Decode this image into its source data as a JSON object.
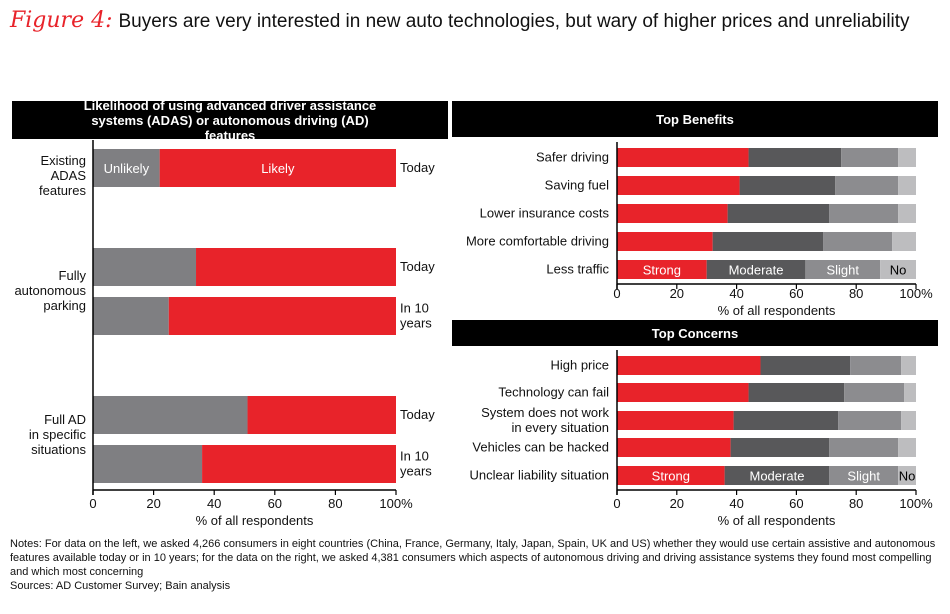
{
  "figure": {
    "label": "Figure 4:",
    "title": "Buyers are very interested in new auto technologies, but wary of higher prices and unreliability"
  },
  "colors": {
    "strong": "#e8232a",
    "moderate": "#58585a",
    "slight": "#8c8c8f",
    "none": "#bdbdbf",
    "likely": "#e8232a",
    "unlikely": "#7f7f82"
  },
  "notes": {
    "text": "Notes: For data on the left, we asked 4,266 consumers in eight countries (China, France, Germany, Italy, Japan, Spain, UK and US) whether they would use certain assistive and autonomous features available today or in 10 years; for the data on the right, we asked 4,381 consumers which aspects of autonomous driving and driving assistance systems they found most compelling and which most concerning",
    "sources": "Sources: AD Customer Survey; Bain analysis"
  },
  "chart_data": [
    {
      "type": "bar",
      "orientation": "horizontal",
      "stacked": true,
      "title": "Likelihood of using advanced driver assistance systems (ADAS) or autonomous driving (AD) features",
      "xlabel": "% of all respondents",
      "xlim": [
        0,
        100
      ],
      "ticks": [
        "0",
        "20",
        "40",
        "60",
        "80",
        "100%"
      ],
      "groups": [
        {
          "label": [
            "Existing",
            "ADAS",
            "features"
          ],
          "bars": [
            {
              "period": [
                "Today"
              ],
              "unlikely": 22,
              "likely": 78
            }
          ]
        },
        {
          "label": [
            "Fully",
            "autonomous",
            "parking"
          ],
          "bars": [
            {
              "period": [
                "Today"
              ],
              "unlikely": 34,
              "likely": 66
            },
            {
              "period": [
                "In 10",
                "years"
              ],
              "unlikely": 25,
              "likely": 75
            }
          ]
        },
        {
          "label": [
            "Full AD",
            "in specific",
            "situations"
          ],
          "bars": [
            {
              "period": [
                "Today"
              ],
              "unlikely": 51,
              "likely": 49
            },
            {
              "period": [
                "In 10",
                "years"
              ],
              "unlikely": 36,
              "likely": 64
            }
          ]
        }
      ],
      "series": [
        {
          "name": "Unlikely"
        },
        {
          "name": "Likely"
        }
      ]
    },
    {
      "type": "bar",
      "orientation": "horizontal",
      "stacked": true,
      "title": "Top Benefits",
      "xlabel": "% of all respondents",
      "xlim": [
        0,
        100
      ],
      "ticks": [
        "0",
        "20",
        "40",
        "60",
        "80",
        "100%"
      ],
      "categories": [
        "Safer driving",
        "Saving fuel",
        "Lower insurance costs",
        "More comfortable driving",
        "Less traffic"
      ],
      "series": [
        {
          "name": "Strong",
          "values": [
            44,
            41,
            37,
            32,
            30
          ]
        },
        {
          "name": "Moderate",
          "values": [
            31,
            32,
            34,
            37,
            33
          ]
        },
        {
          "name": "Slight",
          "values": [
            19,
            21,
            23,
            23,
            25
          ]
        },
        {
          "name": "No",
          "values": [
            6,
            6,
            6,
            8,
            12
          ]
        }
      ]
    },
    {
      "type": "bar",
      "orientation": "horizontal",
      "stacked": true,
      "title": "Top Concerns",
      "xlabel": "% of all respondents",
      "xlim": [
        0,
        100
      ],
      "ticks": [
        "0",
        "20",
        "40",
        "60",
        "80",
        "100%"
      ],
      "categories": [
        "High price",
        "Technology can fail",
        "System does not work\nin every situation",
        "Vehicles can be hacked",
        "Unclear liability situation"
      ],
      "series": [
        {
          "name": "Strong",
          "values": [
            48,
            44,
            39,
            38,
            36
          ]
        },
        {
          "name": "Moderate",
          "values": [
            30,
            32,
            35,
            33,
            35
          ]
        },
        {
          "name": "Slight",
          "values": [
            17,
            20,
            21,
            23,
            23
          ]
        },
        {
          "name": "No",
          "values": [
            5,
            4,
            5,
            6,
            6
          ]
        }
      ]
    }
  ]
}
